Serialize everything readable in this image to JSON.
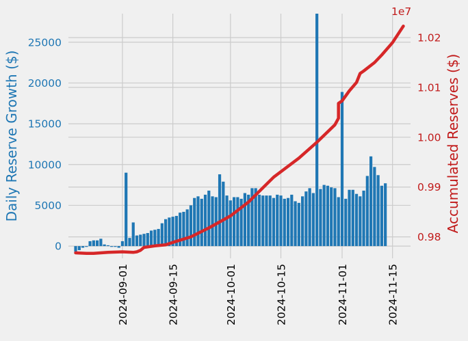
{
  "chart_data": {
    "type": "bar+line",
    "title": "",
    "xlabel": "",
    "colors": {
      "bars": "#1f77b4",
      "line": "#d62728",
      "left_axis_text": "#1f77b4",
      "right_axis_text": "#c11b1b",
      "background": "#f0f0f0",
      "grid": "#cbcbcb"
    },
    "grid": true,
    "left_axis": {
      "label": "Daily Reserve Growth ($)",
      "ylim": [
        -1500,
        28500
      ],
      "ticks": [
        0,
        5000,
        10000,
        15000,
        20000,
        25000
      ],
      "tick_labels": [
        "0",
        "5000",
        "10000",
        "15000",
        "20000",
        "25000"
      ]
    },
    "right_axis": {
      "label": "Accumulated Reserves ($)",
      "offset_label": "1e7",
      "ylim_1e7": [
        0.9757,
        1.0248
      ],
      "ticks": [
        0.98,
        0.99,
        1.0,
        1.01,
        1.02
      ],
      "tick_labels": [
        "0.98",
        "0.99",
        "1.00",
        "1.01",
        "1.02"
      ]
    },
    "x_axis": {
      "ticks": [
        "2024-09-01",
        "2024-09-15",
        "2024-10-01",
        "2024-10-15",
        "2024-11-01",
        "2024-11-15"
      ],
      "range": [
        "2024-08-17",
        "2024-11-20"
      ]
    },
    "series": [
      {
        "name": "Daily Reserve Growth ($)",
        "kind": "bar",
        "axis": "left",
        "start_date": "2024-08-19",
        "values": [
          -700,
          -500,
          -200,
          -100,
          600,
          700,
          700,
          900,
          200,
          100,
          -100,
          -100,
          -200,
          600,
          9000,
          1000,
          2900,
          1300,
          1400,
          1500,
          1600,
          1900,
          2000,
          2100,
          2800,
          3300,
          3500,
          3600,
          3700,
          4100,
          4200,
          4500,
          5000,
          5900,
          6100,
          5800,
          6300,
          6800,
          6100,
          6000,
          8800,
          7900,
          6200,
          5600,
          6000,
          6000,
          5800,
          6500,
          6300,
          7100,
          7100,
          6300,
          6200,
          6200,
          6200,
          5900,
          6300,
          6200,
          5800,
          5900,
          6300,
          5500,
          5300,
          6100,
          6700,
          7100,
          6500,
          28500,
          7000,
          7500,
          7400,
          7200,
          7100,
          6000,
          18900,
          5800,
          6900,
          6900,
          6400,
          6100,
          6800,
          8600,
          11000,
          9700,
          8700,
          7400,
          7700
        ]
      },
      {
        "name": "Accumulated Reserves ($)",
        "kind": "line",
        "axis": "right",
        "unit_multiplier": "1e7",
        "points": [
          [
            "2024-08-19",
            0.9768
          ],
          [
            "2024-08-22",
            0.9767
          ],
          [
            "2024-08-24",
            0.9767
          ],
          [
            "2024-08-28",
            0.9769
          ],
          [
            "2024-09-01",
            0.977
          ],
          [
            "2024-09-04",
            0.9769
          ],
          [
            "2024-09-05",
            0.977
          ],
          [
            "2024-09-06",
            0.9773
          ],
          [
            "2024-09-07",
            0.9779
          ],
          [
            "2024-09-10",
            0.9782
          ],
          [
            "2024-09-13",
            0.9784
          ],
          [
            "2024-09-15",
            0.9789
          ],
          [
            "2024-09-20",
            0.98
          ],
          [
            "2024-09-25",
            0.9818
          ],
          [
            "2024-10-01",
            0.9842
          ],
          [
            "2024-10-06",
            0.987
          ],
          [
            "2024-10-13",
            0.992
          ],
          [
            "2024-10-20",
            0.9958
          ],
          [
            "2024-10-25",
            0.999
          ],
          [
            "2024-10-30",
            1.0025
          ],
          [
            "2024-10-31",
            1.0038
          ],
          [
            "2024-10-31",
            1.0068
          ],
          [
            "2024-11-01",
            1.0073
          ],
          [
            "2024-11-03",
            1.0093
          ],
          [
            "2024-11-05",
            1.011
          ],
          [
            "2024-11-06",
            1.0128
          ],
          [
            "2024-11-07",
            1.0133
          ],
          [
            "2024-11-10",
            1.015
          ],
          [
            "2024-11-12",
            1.0165
          ],
          [
            "2024-11-15",
            1.019
          ],
          [
            "2024-11-18",
            1.0223
          ]
        ]
      }
    ]
  }
}
